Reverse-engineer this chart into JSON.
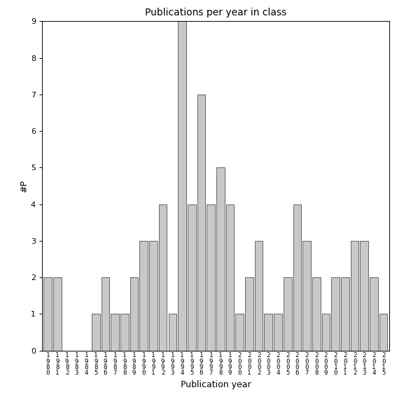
{
  "title": "Publications per year in class",
  "xlabel": "Publication year",
  "ylabel": "#P",
  "bar_color": "#c8c8c8",
  "edge_color": "#333333",
  "years": [
    1980,
    1981,
    1982,
    1983,
    1984,
    1985,
    1986,
    1987,
    1988,
    1989,
    1990,
    1991,
    1992,
    1993,
    1994,
    1995,
    1996,
    1997,
    1998,
    1999,
    2000,
    2001,
    2002,
    2003,
    2004,
    2005,
    2006,
    2007,
    2008,
    2009,
    2010,
    2011,
    2012,
    2013,
    2014,
    2015
  ],
  "values": [
    2,
    2,
    0,
    0,
    0,
    1,
    2,
    1,
    1,
    2,
    3,
    3,
    4,
    1,
    9,
    4,
    7,
    4,
    5,
    4,
    1,
    2,
    3,
    1,
    1,
    2,
    4,
    3,
    2,
    1,
    2,
    2,
    3,
    3,
    2,
    1
  ],
  "ylim": [
    0,
    9
  ],
  "yticks": [
    0,
    1,
    2,
    3,
    4,
    5,
    6,
    7,
    8,
    9
  ],
  "figsize": [
    5.67,
    5.67
  ],
  "dpi": 100,
  "title_fontsize": 10,
  "label_fontsize": 9,
  "tick_fontsize": 8,
  "xtick_fontsize": 6.5,
  "bar_linewidth": 0.5
}
